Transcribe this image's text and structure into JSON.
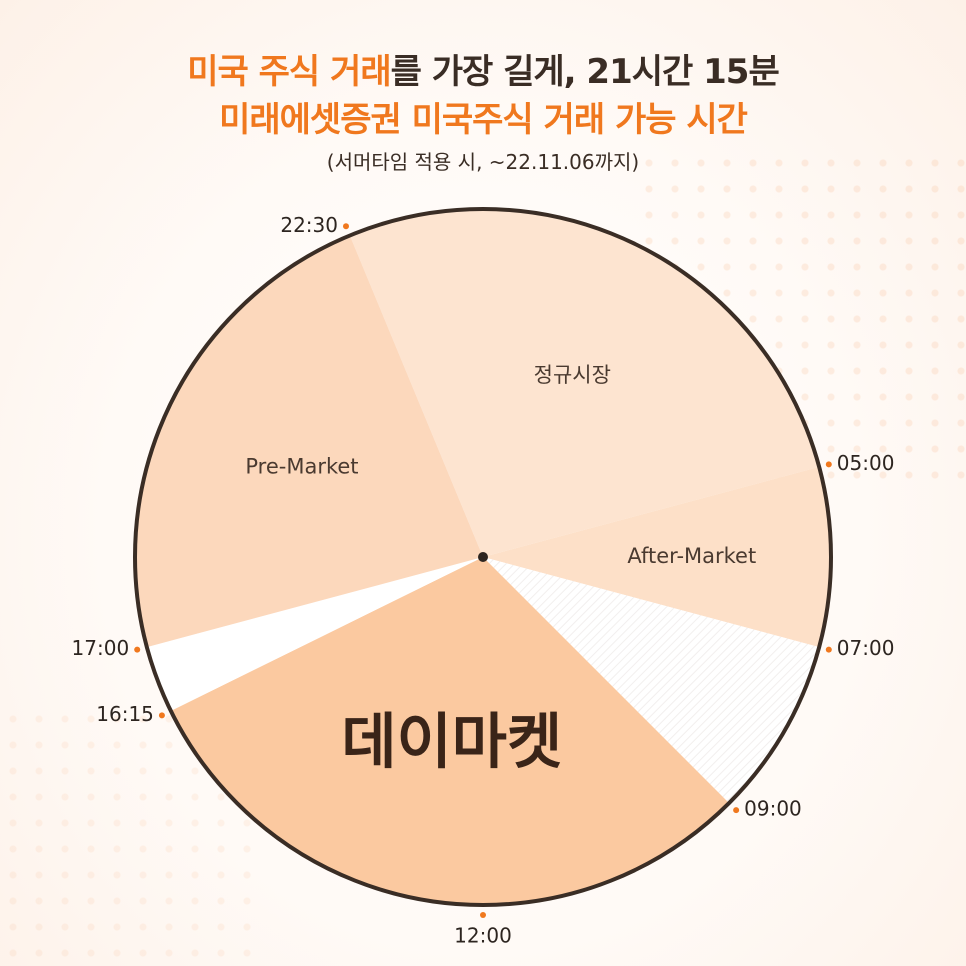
{
  "header": {
    "title_line1_highlight": "미국 주식 거래",
    "title_line1_rest": "를 가장 길게, 21시간 15분",
    "title_line2": "미래에셋증권 미국주식 거래 가능 시간",
    "subtitle": "(서머타임 적용 시, ~22.11.06까지)"
  },
  "colors": {
    "accent": "#f0781e",
    "regular_market": "#fde4d0",
    "pre_market": "#fcd8bc",
    "after_market": "#fde0c8",
    "day_market": "#fbc9a0",
    "closed": "#ffffff",
    "outline": "#3a2d25"
  },
  "chart_data": {
    "type": "pie",
    "clock": "24-hour, 12:00 at bottom, 00:00 at top",
    "segments": [
      {
        "label": "정규시장",
        "start": "22:30",
        "end": "05:00"
      },
      {
        "label": "After-Market",
        "start": "05:00",
        "end": "07:00"
      },
      {
        "label": "",
        "start": "07:00",
        "end": "09:00",
        "closed": true
      },
      {
        "label": "데이마켓",
        "start": "09:00",
        "end": "16:15"
      },
      {
        "label": "",
        "start": "16:15",
        "end": "17:00",
        "closed": true
      },
      {
        "label": "Pre-Market",
        "start": "17:00",
        "end": "22:30"
      }
    ],
    "time_markers": [
      "22:30",
      "05:00",
      "07:00",
      "09:00",
      "12:00",
      "16:15",
      "17:00"
    ]
  }
}
